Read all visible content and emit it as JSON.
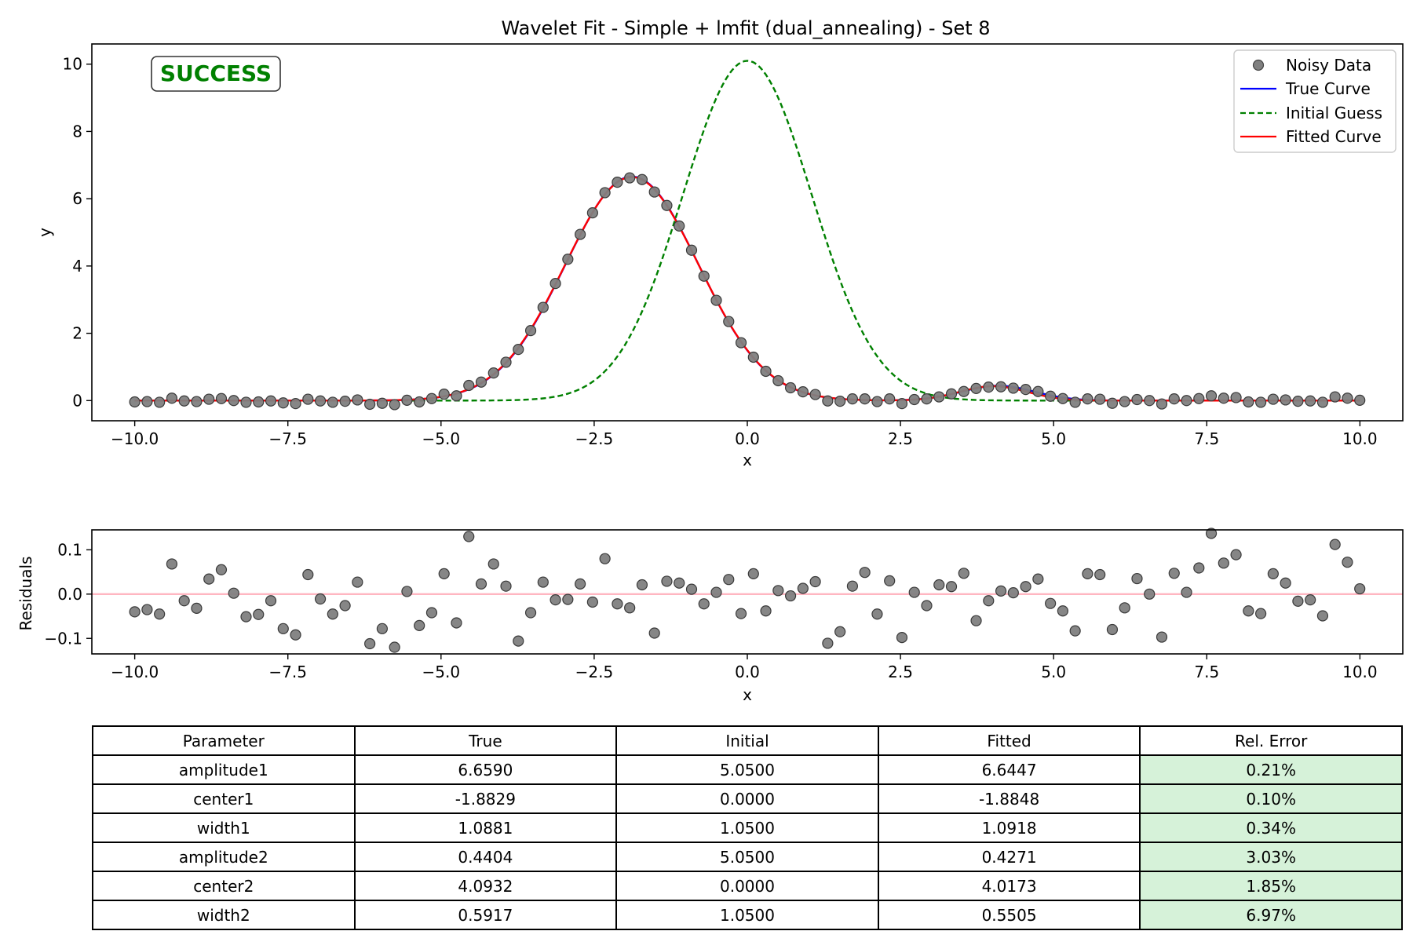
{
  "colors": {
    "noisy": "#808080",
    "true_curve": "#0000ff",
    "initial_guess": "#008000",
    "fitted_curve": "#ff0000",
    "residual_zero": "#ffb6c1",
    "error_cell": "#d6f2d9",
    "status": "#008000"
  },
  "status_label": "SUCCESS",
  "chart_data": [
    {
      "type": "line",
      "title": "Wavelet Fit - Simple + lmfit (dual_annealing) - Set 8",
      "xlabel": "x",
      "ylabel": "y",
      "xlim": [
        -10.7,
        10.7
      ],
      "ylim": [
        -0.6,
        10.6
      ],
      "xticks": [
        -10.0,
        -7.5,
        -5.0,
        -2.5,
        0.0,
        2.5,
        5.0,
        7.5,
        10.0
      ],
      "xtick_labels": [
        "−10.0",
        "−7.5",
        "−5.0",
        "−2.5",
        "0.0",
        "2.5",
        "5.0",
        "7.5",
        "10.0"
      ],
      "yticks": [
        0,
        2,
        4,
        6,
        8,
        10
      ],
      "ytick_labels": [
        "0",
        "2",
        "4",
        "6",
        "8",
        "10"
      ],
      "legend_position": "top-right",
      "x_range": [
        -10,
        10
      ],
      "series": [
        {
          "name": "Noisy Data",
          "kind": "scatter",
          "step": 0.202,
          "values": [
            -0.04,
            -0.03,
            -0.05,
            0.07,
            -0.01,
            -0.03,
            0.04,
            0.06,
            0.0,
            -0.05,
            -0.04,
            -0.01,
            -0.07,
            -0.09,
            0.04,
            -0.01,
            -0.05,
            -0.02,
            0.02,
            -0.11,
            -0.08,
            -0.12,
            0.01,
            -0.04,
            0.06,
            0.19,
            0.14,
            0.45,
            0.55,
            0.82,
            1.14,
            1.52,
            2.08,
            2.77,
            3.48,
            4.2,
            4.94,
            5.58,
            6.18,
            6.49,
            6.62,
            6.57,
            6.2,
            5.8,
            5.19,
            4.47,
            3.7,
            2.98,
            2.35,
            1.72,
            1.29,
            0.87,
            0.59,
            0.38,
            0.26,
            0.18,
            -0.01,
            -0.02,
            0.05,
            0.05,
            -0.03,
            0.05,
            -0.09,
            0.03,
            0.05,
            0.11,
            0.2,
            0.27,
            0.36,
            0.4,
            0.41,
            0.37,
            0.33,
            0.27,
            0.13,
            0.06,
            -0.05,
            0.05,
            0.04,
            -0.08,
            -0.03,
            0.03,
            0.0,
            -0.1,
            0.05,
            0.0,
            0.06,
            0.14,
            0.07,
            0.09,
            -0.04,
            -0.05,
            0.04,
            0.02,
            -0.02,
            -0.01,
            -0.05,
            0.11,
            0.07,
            0.01
          ]
        },
        {
          "name": "True Curve",
          "kind": "wavelet",
          "params": [
            6.659,
            -1.8829,
            1.0881,
            0.4404,
            4.0932,
            0.5917
          ]
        },
        {
          "name": "Initial Guess",
          "kind": "wavelet",
          "params": [
            5.05,
            0.0,
            1.05,
            5.05,
            0.0,
            1.05
          ]
        },
        {
          "name": "Fitted Curve",
          "kind": "wavelet",
          "params": [
            6.6447,
            -1.8848,
            1.0918,
            0.4271,
            4.0173,
            0.5505
          ]
        }
      ]
    },
    {
      "type": "scatter",
      "xlabel": "x",
      "ylabel": "Residuals",
      "xlim": [
        -10.7,
        10.7
      ],
      "ylim": [
        -0.135,
        0.145
      ],
      "xticks": [
        -10.0,
        -7.5,
        -5.0,
        -2.5,
        0.0,
        2.5,
        5.0,
        7.5,
        10.0
      ],
      "xtick_labels": [
        "−10.0",
        "−7.5",
        "−5.0",
        "−2.5",
        "0.0",
        "2.5",
        "5.0",
        "7.5",
        "10.0"
      ],
      "yticks": [
        -0.1,
        0.0,
        0.1
      ],
      "ytick_labels": [
        "−0.1",
        "0.0",
        "0.1"
      ],
      "x_range": [
        -10,
        10
      ],
      "step": 0.202,
      "values": [
        -0.04,
        -0.035,
        -0.045,
        0.068,
        -0.015,
        -0.032,
        0.034,
        0.055,
        0.002,
        -0.051,
        -0.046,
        -0.015,
        -0.078,
        -0.092,
        0.044,
        -0.011,
        -0.045,
        -0.026,
        0.027,
        -0.112,
        -0.078,
        -0.12,
        0.006,
        -0.071,
        -0.042,
        0.046,
        -0.065,
        0.13,
        0.023,
        0.068,
        0.018,
        -0.106,
        -0.042,
        0.027,
        -0.013,
        -0.012,
        0.023,
        -0.018,
        0.08,
        -0.022,
        -0.031,
        0.021,
        -0.088,
        0.029,
        0.025,
        0.011,
        -0.022,
        0.004,
        0.033,
        -0.044,
        0.046,
        -0.038,
        0.008,
        -0.004,
        0.013,
        0.028,
        -0.111,
        -0.085,
        0.018,
        0.049,
        -0.045,
        0.03,
        -0.098,
        0.004,
        -0.026,
        0.021,
        0.017,
        0.047,
        -0.06,
        -0.015,
        0.007,
        0.003,
        0.017,
        0.034,
        -0.021,
        -0.038,
        -0.083,
        0.046,
        0.044,
        -0.08,
        -0.031,
        0.035,
        0.0,
        -0.097,
        0.047,
        0.004,
        0.059,
        0.137,
        0.07,
        0.089,
        -0.038,
        -0.044,
        0.046,
        0.025,
        -0.016,
        -0.013,
        -0.049,
        0.112,
        0.072,
        0.012
      ]
    }
  ],
  "table": {
    "headers": [
      "Parameter",
      "True",
      "Initial",
      "Fitted",
      "Rel. Error"
    ],
    "rows": [
      [
        "amplitude1",
        "6.6590",
        "5.0500",
        "6.6447",
        "0.21%"
      ],
      [
        "center1",
        "-1.8829",
        "0.0000",
        "-1.8848",
        "0.10%"
      ],
      [
        "width1",
        "1.0881",
        "1.0500",
        "1.0918",
        "0.34%"
      ],
      [
        "amplitude2",
        "0.4404",
        "5.0500",
        "0.4271",
        "3.03%"
      ],
      [
        "center2",
        "4.0932",
        "0.0000",
        "4.0173",
        "1.85%"
      ],
      [
        "width2",
        "0.5917",
        "1.0500",
        "0.5505",
        "6.97%"
      ]
    ]
  }
}
